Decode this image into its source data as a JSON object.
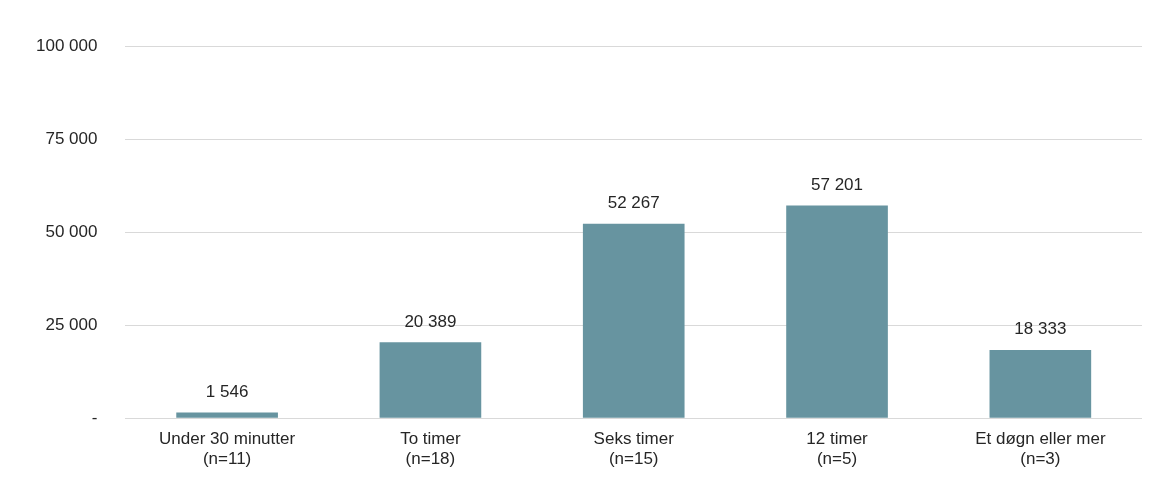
{
  "chart_data": {
    "type": "bar",
    "categories": [
      "Under 30 minutter\n(n=11)",
      "To timer\n(n=18)",
      "Seks timer\n(n=15)",
      "12 timer\n(n=5)",
      "Et døgn eller mer\n(n=3)"
    ],
    "values": [
      1546,
      20389,
      52267,
      57201,
      18333
    ],
    "value_labels": [
      "1 546",
      "20 389",
      "52 267",
      "57 201",
      "18 333"
    ],
    "color": "#6794a0",
    "ylim": [
      0,
      100000
    ],
    "yticks": [
      {
        "value": 0,
        "label": "-"
      },
      {
        "value": 25000,
        "label": "25 000"
      },
      {
        "value": 50000,
        "label": "50 000"
      },
      {
        "value": 75000,
        "label": "75 000"
      },
      {
        "value": 100000,
        "label": "100 000"
      }
    ],
    "grid": "y",
    "legend": false
  }
}
